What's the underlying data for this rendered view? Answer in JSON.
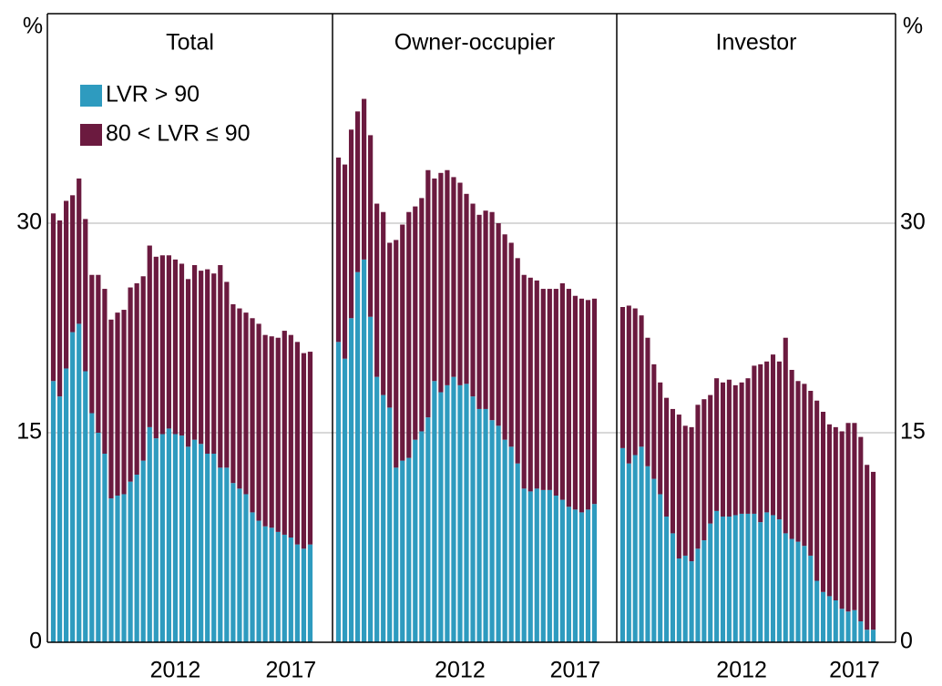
{
  "chart_data": {
    "type": "bar",
    "stacked": true,
    "ylabel": "%",
    "ylim": [
      0,
      45
    ],
    "yticks": [
      0,
      15,
      30
    ],
    "grid": true,
    "categories": [
      null,
      null,
      null,
      null,
      null,
      null,
      null,
      null,
      null,
      null,
      null,
      null,
      null,
      null,
      null,
      null,
      null,
      null,
      null,
      "2012",
      null,
      null,
      null,
      null,
      null,
      null,
      null,
      null,
      null,
      null,
      null,
      null,
      null,
      null,
      null,
      null,
      null,
      "2017",
      null,
      null,
      null
    ],
    "legend": [
      {
        "name": "LVR > 90",
        "color": "#2e9bbf"
      },
      {
        "name": "80 < LVR ≤ 90",
        "color": "#6b1a3f"
      }
    ],
    "panels": [
      {
        "title": "Total",
        "series": [
          {
            "values": [
              18.7,
              17.6,
              19.6,
              22.2,
              22.8,
              19.4,
              16.4,
              15.0,
              13.5,
              10.3,
              10.5,
              10.6,
              11.5,
              12.0,
              13.0,
              15.4,
              14.6,
              14.9,
              15.3,
              14.9,
              14.8,
              14.0,
              14.5,
              14.2,
              13.5,
              13.5,
              12.5,
              12.5,
              11.4,
              11.0,
              10.6,
              9.3,
              8.7,
              8.3,
              8.2,
              7.9,
              7.7,
              7.5,
              7.0,
              6.7,
              7.0
            ]
          },
          {
            "values": [
              12.0,
              12.6,
              12.0,
              9.8,
              10.4,
              10.9,
              9.9,
              11.3,
              11.8,
              12.8,
              13.1,
              13.2,
              13.9,
              13.7,
              13.2,
              13.0,
              13.0,
              12.8,
              12.4,
              12.5,
              12.3,
              12.0,
              12.5,
              12.4,
              13.2,
              12.9,
              14.5,
              13.3,
              12.8,
              12.9,
              13.0,
              13.9,
              14.1,
              13.7,
              13.7,
              13.9,
              14.6,
              14.5,
              14.5,
              14.0,
              13.8
            ]
          }
        ]
      },
      {
        "title": "Owner-occupier",
        "series": [
          {
            "values": [
              21.5,
              20.3,
              23.2,
              26.5,
              27.4,
              23.3,
              19.0,
              17.7,
              16.8,
              12.5,
              13.0,
              13.2,
              14.5,
              15.1,
              16.1,
              18.7,
              17.9,
              18.4,
              19.0,
              18.4,
              18.5,
              17.6,
              16.7,
              16.7,
              15.9,
              15.5,
              14.5,
              14.0,
              12.8,
              11.0,
              10.8,
              11.0,
              10.9,
              10.9,
              10.5,
              10.2,
              9.7,
              9.5,
              9.3,
              9.5,
              9.9
            ]
          },
          {
            "values": [
              13.2,
              13.9,
              13.5,
              11.5,
              11.5,
              13.0,
              12.4,
              13.1,
              11.8,
              16.3,
              16.9,
              17.6,
              16.7,
              16.7,
              17.7,
              14.5,
              15.7,
              15.4,
              14.3,
              14.5,
              13.6,
              13.8,
              13.9,
              14.2,
              14.9,
              14.5,
              14.7,
              14.6,
              14.7,
              15.3,
              15.3,
              14.9,
              14.4,
              14.4,
              14.8,
              15.5,
              15.6,
              15.3,
              15.3,
              15.0,
              14.7
            ]
          }
        ]
      },
      {
        "title": "Investor",
        "series": [
          {
            "values": [
              13.9,
              12.8,
              13.4,
              14.0,
              12.6,
              11.7,
              10.6,
              9.0,
              7.8,
              6.0,
              6.2,
              5.8,
              6.7,
              7.3,
              8.5,
              9.4,
              9.0,
              9.0,
              9.1,
              9.2,
              9.2,
              9.2,
              8.6,
              9.3,
              9.1,
              8.8,
              7.8,
              7.4,
              7.2,
              6.9,
              6.2,
              4.4,
              3.6,
              3.3,
              3.0,
              2.4,
              2.2,
              2.3,
              1.5,
              0.9,
              0.9
            ]
          },
          {
            "values": [
              10.1,
              11.3,
              10.5,
              9.4,
              9.2,
              8.2,
              8.0,
              8.5,
              8.9,
              10.3,
              9.3,
              9.6,
              10.3,
              10.1,
              9.2,
              9.5,
              9.6,
              9.8,
              9.3,
              9.4,
              9.7,
              10.6,
              11.3,
              10.8,
              11.5,
              11.3,
              14.0,
              12.1,
              11.5,
              11.6,
              11.8,
              12.9,
              12.9,
              12.3,
              12.4,
              12.7,
              13.5,
              13.4,
              13.2,
              11.8,
              11.3
            ]
          }
        ]
      }
    ]
  }
}
